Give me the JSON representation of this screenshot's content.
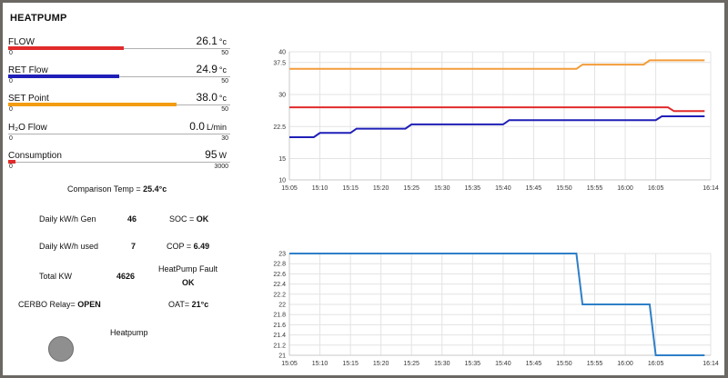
{
  "title": "HEATPUMP",
  "gauges": [
    {
      "label": "FLOW",
      "value": "26.1",
      "unit": "°c",
      "min": "0",
      "max": "50",
      "level": 0.52,
      "color": "#e12a2a"
    },
    {
      "label": "RET Flow",
      "value": "24.9",
      "unit": "°c",
      "min": "0",
      "max": "50",
      "level": 0.498,
      "color": "#1f1fb8"
    },
    {
      "label": "SET Point",
      "value": "38.0",
      "unit": "°c",
      "min": "0",
      "max": "50",
      "level": 0.76,
      "color": "#f39c12"
    },
    {
      "label": "H₂O Flow",
      "value": "0.0",
      "unit": "L/min",
      "min": "0",
      "max": "30",
      "level": 0.0,
      "color": "#555555"
    },
    {
      "label": "Consumption",
      "value": "95",
      "unit": "W",
      "min": "0",
      "max": "3000",
      "level": 0.032,
      "color": "#e12a2a"
    }
  ],
  "comparison": {
    "label": "Comparison Temp = ",
    "value": "25.4°c"
  },
  "stats": {
    "daily_gen_label": "Daily kW/h Gen",
    "daily_gen_value": "46",
    "daily_used_label": "Daily kW/h used",
    "daily_used_value": "7",
    "total_kw_label": "Total KW",
    "total_kw_value": "4626",
    "soc_label": "SOC = ",
    "soc_value": "OK",
    "cop_label": "COP = ",
    "cop_value": "6.49",
    "fault_label": "HeatPump Fault",
    "fault_value": "OK",
    "relay_label": "CERBO Relay= ",
    "relay_value": "OPEN",
    "oat_label": "OAT= ",
    "oat_value": "21°c",
    "heatpump_label": "Heatpump"
  },
  "chart_data": [
    {
      "type": "line",
      "x_ticks": [
        "15:05",
        "15:10",
        "15:15",
        "15:20",
        "15:25",
        "15:30",
        "15:35",
        "15:40",
        "15:45",
        "15:50",
        "15:55",
        "16:00",
        "16:05",
        "16:14"
      ],
      "y_ticks": [
        "10",
        "15",
        "22.5",
        "30",
        "37.5",
        "40"
      ],
      "ylim": [
        10,
        40
      ],
      "grid": true,
      "series": [
        {
          "color": "#f39c3b",
          "points": [
            [
              "15:05",
              36.0
            ],
            [
              "15:52",
              36.0
            ],
            [
              "15:53",
              37.0
            ],
            [
              "16:03",
              37.0
            ],
            [
              "16:04",
              38.0
            ],
            [
              "16:13",
              38.0
            ]
          ]
        },
        {
          "color": "#e12a2a",
          "points": [
            [
              "15:05",
              27.0
            ],
            [
              "16:07",
              27.0
            ],
            [
              "16:08",
              26.1
            ],
            [
              "16:13",
              26.1
            ]
          ]
        },
        {
          "color": "#1f1fb8",
          "points": [
            [
              "15:05",
              20.0
            ],
            [
              "15:09",
              20.0
            ],
            [
              "15:10",
              21.0
            ],
            [
              "15:15",
              21.0
            ],
            [
              "15:16",
              22.0
            ],
            [
              "15:24",
              22.0
            ],
            [
              "15:25",
              23.0
            ],
            [
              "15:40",
              23.0
            ],
            [
              "15:41",
              24.0
            ],
            [
              "16:05",
              24.0
            ],
            [
              "16:06",
              24.9
            ],
            [
              "16:13",
              24.9
            ]
          ]
        }
      ]
    },
    {
      "type": "line",
      "x_ticks": [
        "15:05",
        "15:10",
        "15:15",
        "15:20",
        "15:25",
        "15:30",
        "15:35",
        "15:40",
        "15:45",
        "15:50",
        "15:55",
        "16:00",
        "16:05",
        "16:14"
      ],
      "y_ticks": [
        "21",
        "21.2",
        "21.4",
        "21.6",
        "21.8",
        "22",
        "22.2",
        "22.4",
        "22.6",
        "22.8",
        "23"
      ],
      "ylim": [
        21,
        23
      ],
      "grid": true,
      "series": [
        {
          "color": "#2f7fc8",
          "points": [
            [
              "15:05",
              23.0
            ],
            [
              "15:52",
              23.0
            ],
            [
              "15:53",
              22.0
            ],
            [
              "16:04",
              22.0
            ],
            [
              "16:05",
              21.0
            ],
            [
              "16:13",
              21.0
            ]
          ]
        }
      ]
    }
  ]
}
